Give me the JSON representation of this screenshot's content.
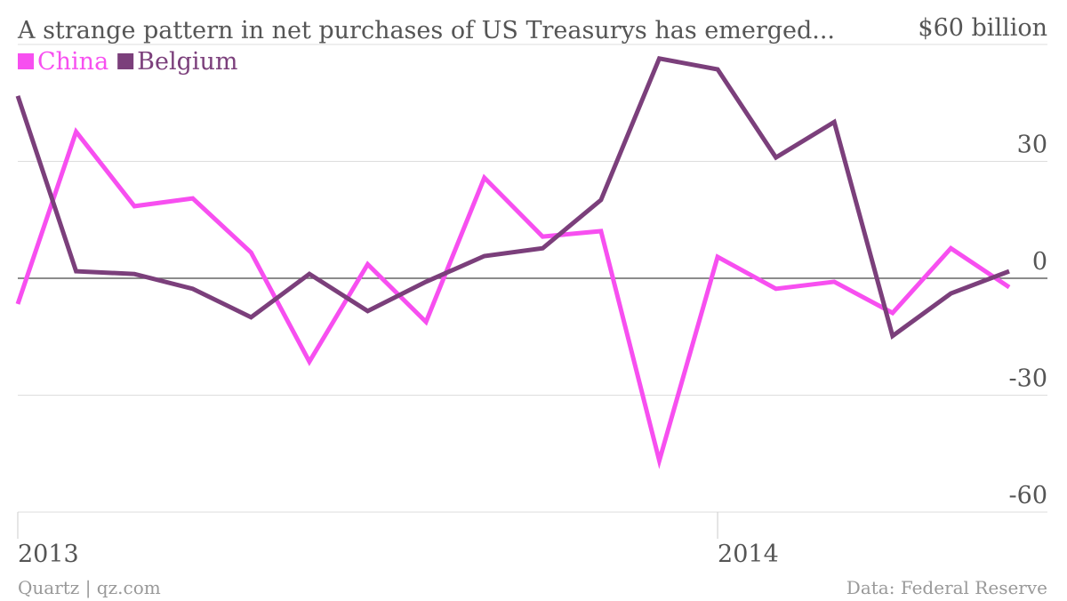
{
  "chart_data": {
    "type": "line",
    "title": "A strange pattern in net purchases of US Treasurys has emerged...",
    "source": "Data: Federal Reserve",
    "credit": "Quartz | qz.com",
    "categories": [
      "2013",
      null,
      null,
      null,
      null,
      null,
      null,
      null,
      null,
      null,
      null,
      null,
      "2014",
      null,
      null,
      null,
      null,
      null
    ],
    "series": [
      {
        "name": "China",
        "color": "#f74ff0",
        "values": [
          -6.6,
          37.6,
          18.5,
          20.5,
          6.6,
          -21.4,
          3.6,
          -11.2,
          25.8,
          10.7,
          12.1,
          -46.8,
          5.5,
          -2.7,
          -0.9,
          -8.9,
          7.7,
          -2.3
        ]
      },
      {
        "name": "Belgium",
        "color": "#7b3f7b",
        "values": [
          46.8,
          1.8,
          1.1,
          -2.7,
          -10,
          1.1,
          -8.4,
          -0.9,
          5.7,
          7.7,
          20.1,
          56.4,
          53.6,
          31,
          40.1,
          -14.8,
          -3.9,
          1.8
        ]
      }
    ],
    "ylim": [
      -60,
      60
    ],
    "yticks": [
      -60,
      -30,
      0,
      30,
      {
        "value": 60,
        "label": "$60 billion"
      }
    ],
    "grid": true
  }
}
